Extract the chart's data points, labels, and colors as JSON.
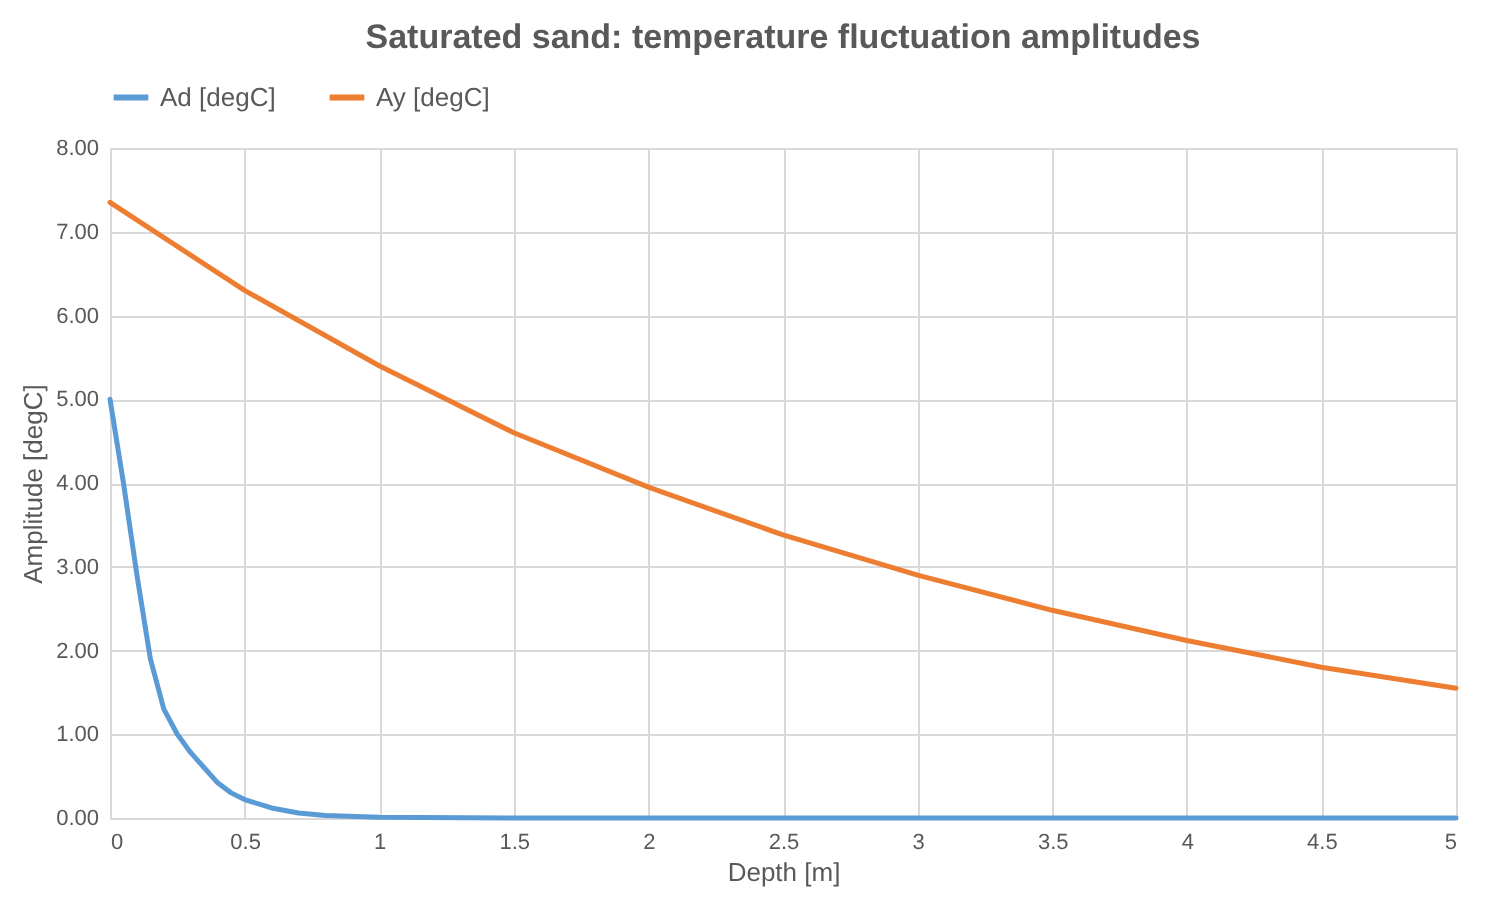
{
  "chart_data": {
    "type": "line",
    "title": "Saturated sand: temperature fluctuation amplitudes",
    "xlabel": "Depth [m]",
    "ylabel": "Amplitude [degC]",
    "series": [
      {
        "name": "Ad [degC]",
        "color": "#5b9bd5",
        "x": [
          0,
          0.05,
          0.1,
          0.15,
          0.2,
          0.25,
          0.3,
          0.35,
          0.4,
          0.45,
          0.5,
          0.6,
          0.7,
          0.8,
          1,
          1.5,
          2,
          3,
          4,
          5
        ],
        "values": [
          5.0,
          4.0,
          2.9,
          1.9,
          1.3,
          1.0,
          0.78,
          0.6,
          0.42,
          0.3,
          0.22,
          0.12,
          0.06,
          0.03,
          0.01,
          0,
          0,
          0,
          0,
          0
        ]
      },
      {
        "name": "Ay [degC]",
        "color": "#ed7d31",
        "x": [
          0,
          0.5,
          1,
          1.5,
          2,
          2.5,
          3,
          3.5,
          4,
          4.5,
          5
        ],
        "values": [
          7.35,
          6.3,
          5.4,
          4.6,
          3.95,
          3.38,
          2.9,
          2.48,
          2.12,
          1.8,
          1.55
        ]
      }
    ],
    "xlim": [
      0,
      5
    ],
    "xticks": [
      0,
      0.5,
      1,
      1.5,
      2,
      2.5,
      3,
      3.5,
      4,
      4.5,
      5
    ],
    "ylim": [
      0,
      8
    ],
    "yticks": [
      {
        "value": 0,
        "label": "0.00"
      },
      {
        "value": 1,
        "label": "1.00"
      },
      {
        "value": 2,
        "label": "2.00"
      },
      {
        "value": 3,
        "label": "3.00"
      },
      {
        "value": 4,
        "label": "4.00"
      },
      {
        "value": 5,
        "label": "5.00"
      },
      {
        "value": 6,
        "label": "6.00"
      },
      {
        "value": 7,
        "label": "7.00"
      },
      {
        "value": 8,
        "label": "8.00"
      }
    ],
    "grid": true,
    "legend": "top",
    "marker": "none",
    "line_style": "solid"
  }
}
